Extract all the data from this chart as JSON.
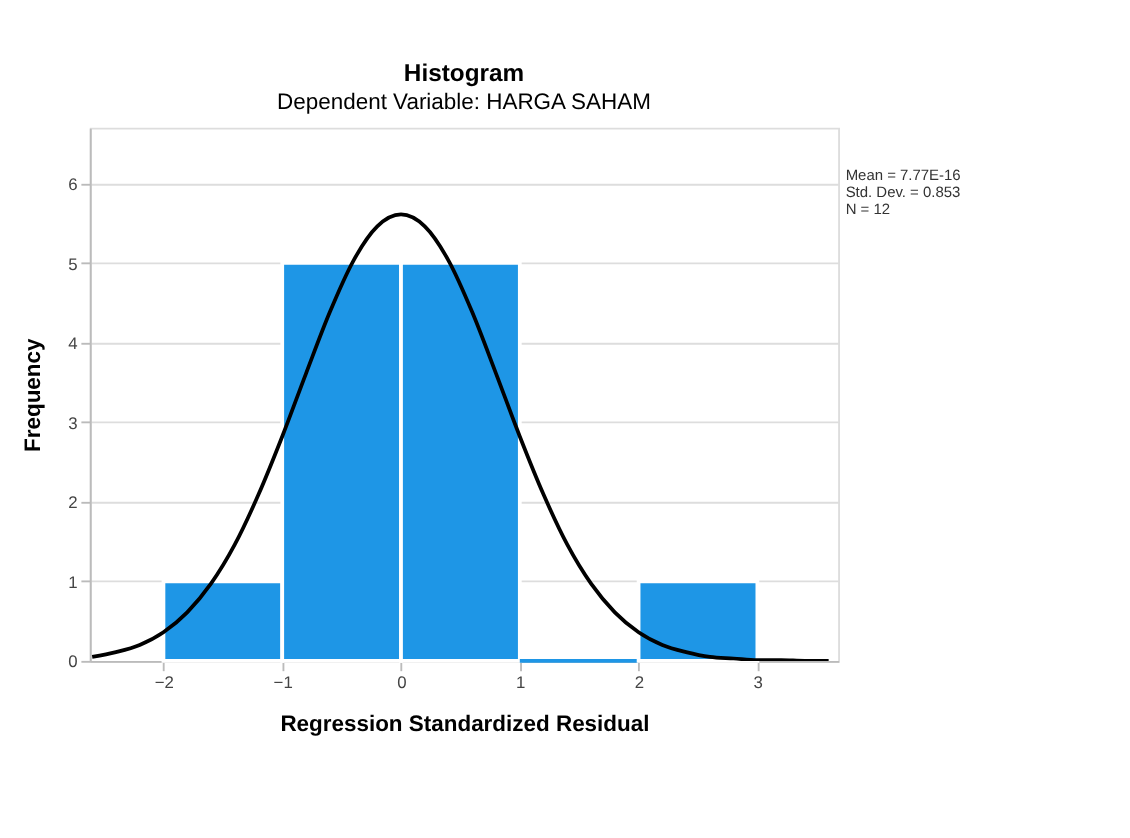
{
  "chart_data": {
    "type": "histogram",
    "title": "Histogram",
    "subtitle": "Dependent Variable: HARGA SAHAM",
    "xlabel": "Regression Standardized Residual",
    "ylabel": "Frequency",
    "bins": [
      -2,
      -1,
      0,
      1,
      2,
      3
    ],
    "values": [
      1,
      5,
      5,
      0,
      1
    ],
    "color": "#1e96e6",
    "series": [
      {
        "type": "line",
        "color": "#000000",
        "x": [
          -2.6,
          -2.4,
          -2.2,
          -2.0,
          -1.8,
          -1.6,
          -1.4,
          -1.2,
          -1.0,
          -0.8,
          -0.6,
          -0.4,
          -0.2,
          0,
          0.2,
          0.4,
          0.6,
          0.8,
          1.0,
          1.2,
          1.4,
          1.6,
          1.8,
          2.0,
          2.2,
          2.4,
          2.6,
          2.8,
          3.0,
          3.2,
          3.4,
          3.6
        ],
        "values": [
          0.05,
          0.11,
          0.2,
          0.36,
          0.61,
          0.97,
          1.46,
          2.09,
          2.82,
          3.61,
          4.38,
          5.03,
          5.46,
          5.61,
          5.46,
          5.03,
          4.38,
          3.61,
          2.82,
          2.09,
          1.46,
          0.97,
          0.61,
          0.36,
          0.2,
          0.11,
          0.05,
          0.03,
          0.01,
          0.01,
          0.0,
          0.0
        ]
      }
    ],
    "annotations": [
      "Mean = 7.77E-16",
      "Std. Dev. = 0.853",
      "N = 12"
    ],
    "xlim": [
      -2.62,
      3.68
    ],
    "ylim": [
      0,
      6.7
    ],
    "xticks": [
      -2,
      -1,
      0,
      1,
      2,
      3
    ],
    "yticks": [
      0,
      1,
      2,
      3,
      4,
      5,
      6
    ],
    "grid": "y",
    "line_style": "solid"
  }
}
